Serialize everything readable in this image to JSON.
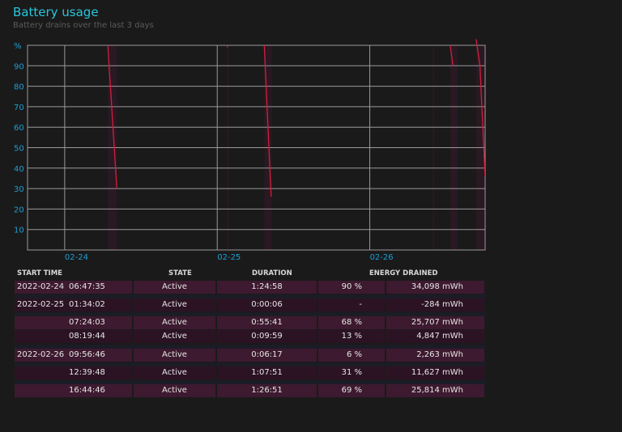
{
  "header": {
    "title": "Battery usage",
    "subtitle": "Battery drains over the last 3 days"
  },
  "colors": {
    "title": "#27c6dc",
    "axis_label": "#1a9fd6",
    "grid": "#9a9a9a",
    "line": "#d0203c",
    "band": "#2a1822",
    "row_light": "#3d1a2f",
    "row_dark": "#2c1323"
  },
  "chart_data": {
    "type": "line",
    "ylabel": "%",
    "ylim": [
      0,
      100
    ],
    "yticks": [
      10,
      20,
      30,
      40,
      50,
      60,
      70,
      80,
      90
    ],
    "xlim": [
      "2022-02-23T18:09",
      "2022-02-26T18:09"
    ],
    "xticks": [
      {
        "label": "02-24",
        "t": "2022-02-24T00:00"
      },
      {
        "label": "02-25",
        "t": "2022-02-25T00:00"
      },
      {
        "label": "02-26",
        "t": "2022-02-26T00:00"
      }
    ],
    "grid": true,
    "segments": [
      {
        "points": [
          [
            "2022-02-24T06:47",
            100
          ],
          [
            "2022-02-24T08:12",
            30
          ]
        ]
      },
      {
        "points": [
          [
            "2022-02-25T01:34",
            99
          ],
          [
            "2022-02-25T01:35",
            100
          ]
        ]
      },
      {
        "points": [
          [
            "2022-02-25T07:24",
            100
          ],
          [
            "2022-02-25T08:29",
            26
          ]
        ]
      },
      {
        "points": [
          [
            "2022-02-26T12:39",
            100
          ],
          [
            "2022-02-26T13:05",
            90
          ]
        ]
      },
      {
        "points": [
          [
            "2022-02-26T16:44",
            103
          ],
          [
            "2022-02-26T17:20",
            90
          ],
          [
            "2022-02-26T18:09",
            36
          ]
        ]
      }
    ]
  },
  "table": {
    "headers": [
      "START TIME",
      "STATE",
      "DURATION",
      "ENERGY DRAINED"
    ],
    "rows": [
      {
        "date": "2022-02-24",
        "time": "06:47:35",
        "state": "Active",
        "duration": "1:24:58",
        "percent": "90 %",
        "energy": "34,098 mWh",
        "group_start": true
      },
      {
        "date": "2022-02-25",
        "time": "01:34:02",
        "state": "Active",
        "duration": "0:00:06",
        "percent": "-",
        "energy": "-284 mWh",
        "group_start": true
      },
      {
        "date": "",
        "time": "07:24:03",
        "state": "Active",
        "duration": "0:55:41",
        "percent": "68 %",
        "energy": "25,707 mWh",
        "group_start": true
      },
      {
        "date": "",
        "time": "08:19:44",
        "state": "Active",
        "duration": "0:09:59",
        "percent": "13 %",
        "energy": "4,847 mWh",
        "group_start": false
      },
      {
        "date": "2022-02-26",
        "time": "09:56:46",
        "state": "Active",
        "duration": "0:06:17",
        "percent": "6 %",
        "energy": "2,263 mWh",
        "group_start": true
      },
      {
        "date": "",
        "time": "12:39:48",
        "state": "Active",
        "duration": "1:07:51",
        "percent": "31 %",
        "energy": "11,627 mWh",
        "group_start": true
      },
      {
        "date": "",
        "time": "16:44:46",
        "state": "Active",
        "duration": "1:26:51",
        "percent": "69 %",
        "energy": "25,814 mWh",
        "group_start": true
      }
    ]
  }
}
